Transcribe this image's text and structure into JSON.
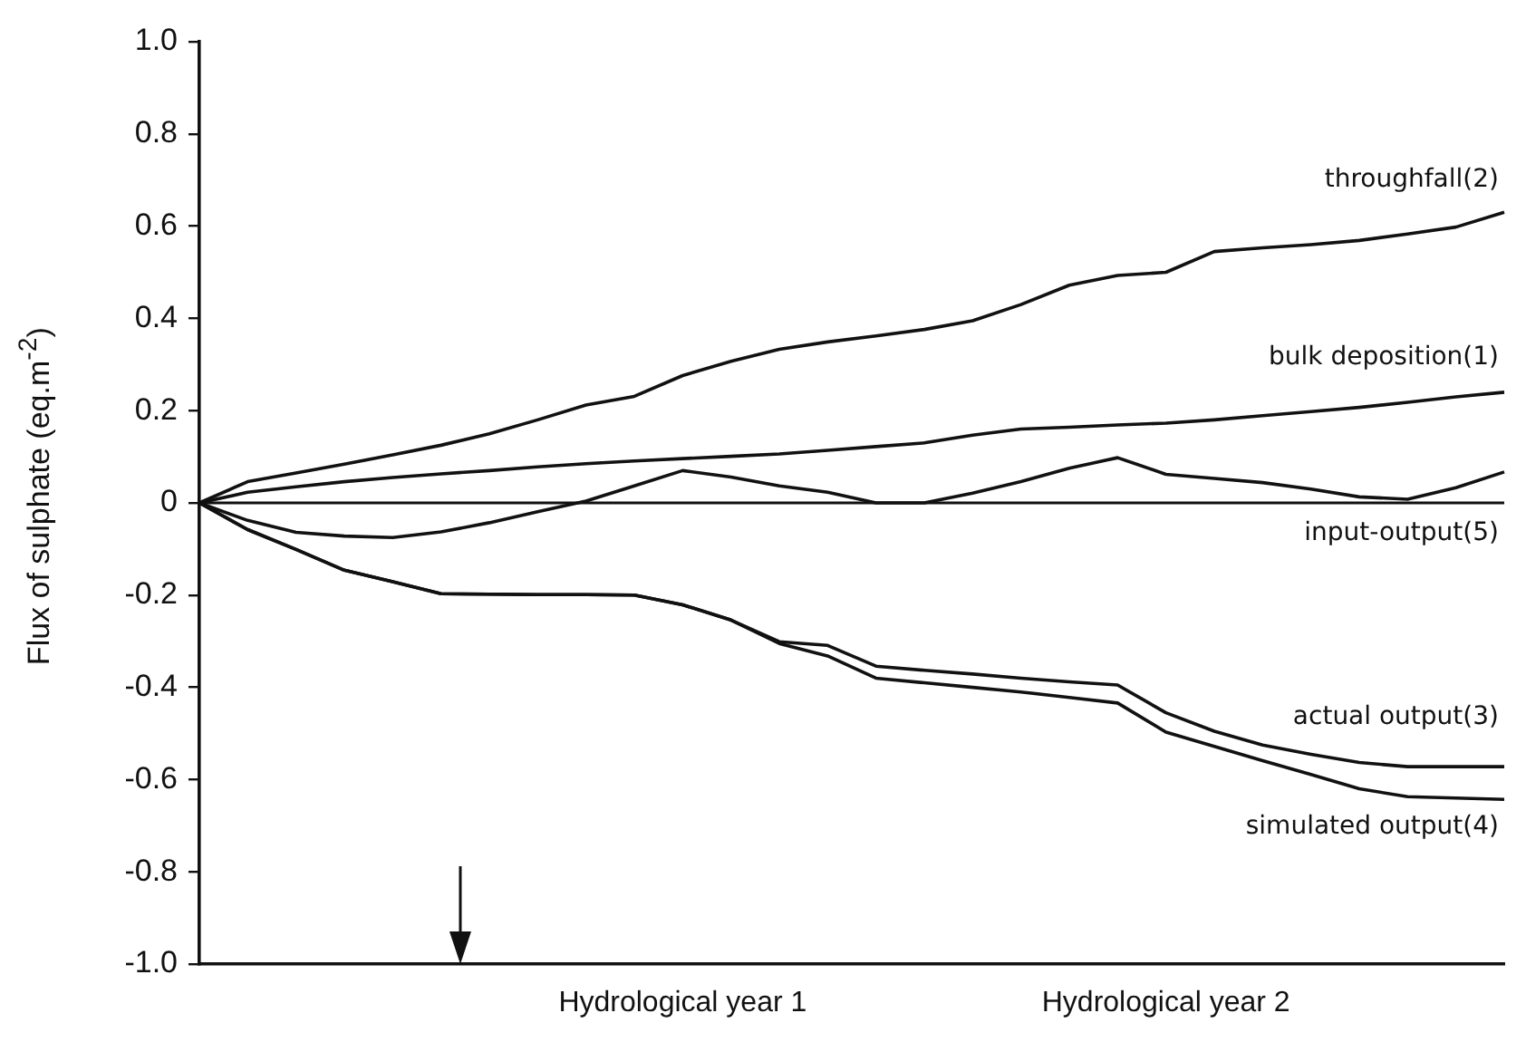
{
  "chart_data": {
    "type": "line",
    "ylabel": "Flux of sulphate (eq.m$^{-2}$)",
    "categories": [
      null,
      null,
      null,
      null,
      null,
      null,
      null,
      null,
      null,
      null,
      "Hydrological year 1",
      null,
      null,
      null,
      null,
      null,
      null,
      null,
      null,
      null,
      "Hydrological year 2",
      null,
      null,
      null,
      null,
      null,
      null,
      null
    ],
    "ylim": [
      -1.0,
      1.0
    ],
    "yticks": [
      {
        "value": -1,
        "label": "-1.0"
      },
      -0.8,
      -0.6,
      -0.4,
      -0.2,
      0,
      0.2,
      0.4,
      0.6,
      0.8,
      {
        "value": 1,
        "label": "1.0"
      }
    ],
    "ref_lines": [
      {
        "axis": "y",
        "value": 0,
        "color": "#111111"
      }
    ],
    "marker": "none",
    "legend": false,
    "series": [
      {
        "name": "throughfall(2)",
        "color": "#111111",
        "values": [
          0,
          0.046,
          0.065,
          0.084,
          0.104,
          0.125,
          0.15,
          0.18,
          0.212,
          0.231,
          0.276,
          0.307,
          0.333,
          0.349,
          0.362,
          0.376,
          0.395,
          0.43,
          0.472,
          0.493,
          0.5,
          0.545,
          0.553,
          0.56,
          0.569,
          0.583,
          0.598,
          0.63
        ]
      },
      {
        "name": "bulk deposition(1)",
        "color": "#111111",
        "values": [
          0,
          0.023,
          0.035,
          0.046,
          0.055,
          0.063,
          0.07,
          0.078,
          0.085,
          0.091,
          0.096,
          0.101,
          0.106,
          0.114,
          0.122,
          0.13,
          0.147,
          0.16,
          0.164,
          0.169,
          0.173,
          0.18,
          0.189,
          0.198,
          0.207,
          0.218,
          0.23,
          0.24
        ]
      },
      {
        "name": "input-output(5)",
        "color": "#111111",
        "values": [
          0,
          -0.038,
          -0.064,
          -0.072,
          -0.075,
          -0.063,
          -0.043,
          -0.019,
          0.004,
          0.037,
          0.07,
          0.056,
          0.037,
          0.023,
          0,
          0,
          0.021,
          0.046,
          0.075,
          0.098,
          0.062,
          0.053,
          0.044,
          0.03,
          0.013,
          0.008,
          0.033,
          0.067
        ]
      },
      {
        "name": "actual output(3)",
        "color": "#111111",
        "values": [
          0,
          -0.058,
          -0.101,
          -0.146,
          -0.171,
          -0.197,
          -0.198,
          -0.199,
          -0.199,
          -0.2,
          -0.221,
          -0.254,
          -0.301,
          -0.309,
          -0.354,
          -0.363,
          -0.371,
          -0.38,
          -0.388,
          -0.395,
          -0.455,
          -0.495,
          -0.525,
          -0.545,
          -0.563,
          -0.572,
          -0.572,
          -0.572
        ]
      },
      {
        "name": "simulated output(4)",
        "color": "#111111",
        "values": [
          0,
          -0.058,
          -0.101,
          -0.146,
          -0.171,
          -0.197,
          -0.198,
          -0.199,
          -0.199,
          -0.2,
          -0.221,
          -0.254,
          -0.305,
          -0.332,
          -0.38,
          -0.39,
          -0.4,
          -0.41,
          -0.422,
          -0.434,
          -0.497,
          -0.528,
          -0.559,
          -0.589,
          -0.62,
          -0.637,
          -0.64,
          -0.643
        ]
      }
    ]
  }
}
